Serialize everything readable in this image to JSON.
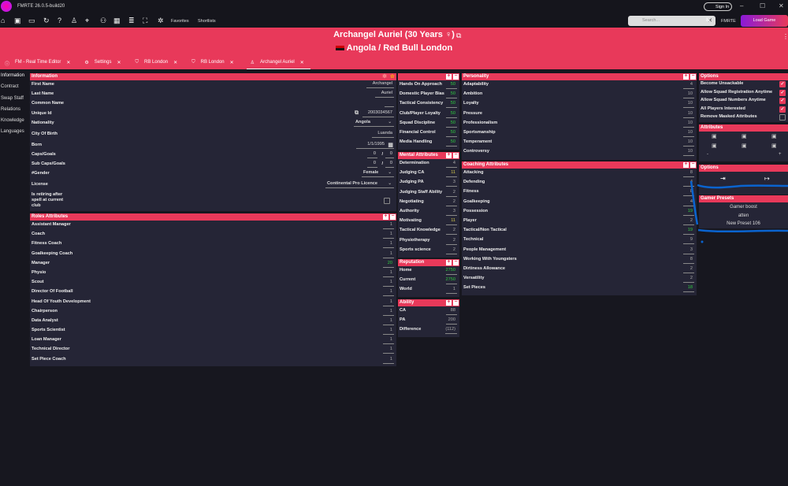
{
  "app": {
    "title": "FMRTE 26.0.5-build20",
    "favorites": "Favorites",
    "shortlists": "Shortlists",
    "sign_in": "Sign In",
    "search_placeholder": "Search...",
    "fmrte": "FMRTE",
    "load_game": "Load Game"
  },
  "header": {
    "title": "Archangel Auriel (30 Years ♀)",
    "subtitle": "Angola  /  Red Bull London"
  },
  "tabs": [
    {
      "label": "FM - Real Time Editor"
    },
    {
      "label": "Settings"
    },
    {
      "label": "RB London"
    },
    {
      "label": "RB London"
    },
    {
      "label": "Archangel Auriel"
    }
  ],
  "nav": [
    "Information",
    "Contract",
    "Swap Staff",
    "Relations",
    "Knowledge",
    "Languages"
  ],
  "info": {
    "title": "Information",
    "first_name_l": "First Name",
    "first_name": "Archangel",
    "last_name_l": "Last Name",
    "last_name": "Auriel",
    "common_name_l": "Common Name",
    "common_name": "",
    "uid_l": "Unique Id",
    "uid": "2003034567",
    "nat_l": "Nationality",
    "nat": "Angola",
    "city_l": "City Of Birth",
    "city": "Luanda",
    "born_l": "Born",
    "born": "1/1/1995",
    "caps_l": "Caps/Goals",
    "caps": "0",
    "goals": "0",
    "subcaps_l": "Sub Caps/Goals",
    "subcaps": "0",
    "subgoals": "0",
    "gender_l": "#Gender",
    "gender": "Female",
    "license_l": "License",
    "license": "Continental Pro Licence",
    "retiring_l": "Is retiring after spell at current club",
    "slash": "/"
  },
  "roles": {
    "title": "Roles Attributes",
    "items": [
      [
        "Assistant Manager",
        "1"
      ],
      [
        "Coach",
        "1"
      ],
      [
        "Fitness Coach",
        "1"
      ],
      [
        "Goalkeeping Coach",
        "1"
      ],
      [
        "Manager",
        "20",
        "g"
      ],
      [
        "Physio",
        "1"
      ],
      [
        "Scout",
        "1"
      ],
      [
        "Director Of Football",
        "1"
      ],
      [
        "Head Of Youth Development",
        "1"
      ],
      [
        "Chairperson",
        "1"
      ],
      [
        "Data Analyst",
        "1"
      ],
      [
        "Sports Scientist",
        "1"
      ],
      [
        "Loan Manager",
        "1"
      ],
      [
        "Technical Director",
        "1"
      ],
      [
        "Set Piece Coach",
        "1"
      ]
    ]
  },
  "staff": {
    "title": "",
    "items": [
      [
        "Hands On Approach",
        "50",
        "g"
      ],
      [
        "Domestic Player Bias",
        "50",
        "g"
      ],
      [
        "Tactical Consistency",
        "50",
        "g"
      ],
      [
        "Club/Player Loyalty",
        "50",
        "g"
      ],
      [
        "Squad Discipline",
        "50",
        "g"
      ],
      [
        "Financial Control",
        "50",
        "g"
      ],
      [
        "Media Handling",
        "50",
        "g"
      ]
    ]
  },
  "mental": {
    "title": "Mental Attributes",
    "items": [
      [
        "Determination",
        "4"
      ],
      [
        "Judging CA",
        "11",
        "y"
      ],
      [
        "Judging PA",
        "3"
      ],
      [
        "Judging Staff Ability",
        "2"
      ],
      [
        "Negotiating",
        "2"
      ],
      [
        "Authority",
        "3"
      ],
      [
        "Motivating",
        "11",
        "y"
      ],
      [
        "Tactical Knowledge",
        "2"
      ],
      [
        "Physiotherapy",
        "2"
      ],
      [
        "Sports science",
        "2"
      ]
    ]
  },
  "reputation": {
    "title": "Reputation",
    "items": [
      [
        "Home",
        "2750",
        "g"
      ],
      [
        "Current",
        "2750",
        "g"
      ],
      [
        "World",
        "1"
      ]
    ]
  },
  "ability": {
    "title": "Ability",
    "items": [
      [
        "CA",
        "88"
      ],
      [
        "PA",
        "200"
      ],
      [
        "Difference",
        "(112)"
      ]
    ]
  },
  "personality": {
    "title": "Personality",
    "items": [
      [
        "Adaptability",
        "4"
      ],
      [
        "Ambition",
        "10"
      ],
      [
        "Loyalty",
        "10"
      ],
      [
        "Pressure",
        "10"
      ],
      [
        "Professionalism",
        "10"
      ],
      [
        "Sportsmanship",
        "10"
      ],
      [
        "Temperament",
        "10"
      ],
      [
        "Controversy",
        "10"
      ]
    ]
  },
  "coaching": {
    "title": "Coaching Attributes",
    "items": [
      [
        "Attacking",
        "8"
      ],
      [
        "Defending",
        "4"
      ],
      [
        "Fitness",
        "8"
      ],
      [
        "Goalkeeping",
        "4"
      ],
      [
        "Possession",
        "19",
        "g"
      ],
      [
        "Player",
        "2"
      ],
      [
        "Tactical/Non Tactical",
        "19",
        "g"
      ],
      [
        "Technical",
        "9"
      ],
      [
        "People Management",
        "3"
      ],
      [
        "Working With Youngsters",
        "8"
      ],
      [
        "Dirtiness Allowance",
        "2"
      ],
      [
        "Versatility",
        "2"
      ],
      [
        "Set Pieces",
        "18",
        "g"
      ]
    ]
  },
  "options": {
    "title": "Options",
    "items": [
      [
        "Become Unsackable",
        true
      ],
      [
        "Allow Squad Registration Anytime",
        true
      ],
      [
        "Allow Squad Numbers Anytime",
        true
      ],
      [
        "All Players Interested",
        true
      ],
      [
        "Remove Masked Attributes",
        false
      ]
    ]
  },
  "attributes": {
    "title": "Attributes",
    "minus": "-",
    "plus": "+"
  },
  "options2": {
    "title": "Options"
  },
  "presets": {
    "title": "Gamer Presets",
    "items": [
      "Gamer boost",
      "atten",
      "New  Preset 106"
    ]
  },
  "colors": {
    "accent": "#e8395a",
    "panel": "#252536",
    "bg": "#17171f",
    "green": "#2ecc40"
  }
}
